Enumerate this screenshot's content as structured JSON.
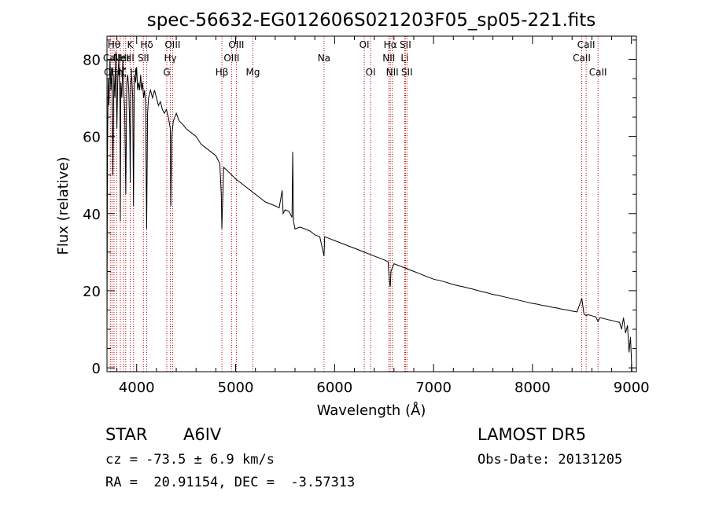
{
  "chart_data": {
    "type": "line",
    "title": "spec-56632-EG012606S021203F05_sp05-221.fits",
    "xlabel": "Wavelength (Å)",
    "ylabel": "Flux (relative)",
    "xlim": [
      3700,
      9050
    ],
    "ylim": [
      -1,
      86
    ],
    "x_ticks": [
      4000,
      5000,
      6000,
      7000,
      8000,
      9000
    ],
    "y_ticks": [
      0,
      20,
      40,
      60,
      80
    ],
    "grid": false,
    "series": [
      {
        "points": [
          [
            3700,
            8
          ],
          [
            3705,
            55
          ],
          [
            3712,
            75
          ],
          [
            3720,
            68
          ],
          [
            3730,
            80
          ],
          [
            3740,
            72
          ],
          [
            3750,
            78
          ],
          [
            3760,
            50
          ],
          [
            3770,
            76
          ],
          [
            3780,
            70
          ],
          [
            3790,
            82
          ],
          [
            3800,
            62
          ],
          [
            3810,
            76
          ],
          [
            3820,
            80
          ],
          [
            3830,
            68
          ],
          [
            3835,
            38
          ],
          [
            3840,
            74
          ],
          [
            3850,
            70
          ],
          [
            3860,
            80
          ],
          [
            3870,
            72
          ],
          [
            3880,
            66
          ],
          [
            3890,
            45
          ],
          [
            3900,
            74
          ],
          [
            3910,
            76
          ],
          [
            3920,
            72
          ],
          [
            3930,
            62
          ],
          [
            3935,
            48
          ],
          [
            3940,
            74
          ],
          [
            3950,
            76
          ],
          [
            3960,
            70
          ],
          [
            3968,
            42
          ],
          [
            3975,
            70
          ],
          [
            3980,
            76
          ],
          [
            3990,
            74
          ],
          [
            4000,
            78
          ],
          [
            4010,
            72
          ],
          [
            4020,
            74
          ],
          [
            4030,
            72
          ],
          [
            4040,
            76
          ],
          [
            4050,
            72
          ],
          [
            4060,
            74
          ],
          [
            4070,
            70
          ],
          [
            4080,
            72
          ],
          [
            4090,
            68
          ],
          [
            4101,
            36
          ],
          [
            4110,
            66
          ],
          [
            4120,
            70
          ],
          [
            4140,
            72
          ],
          [
            4160,
            70
          ],
          [
            4180,
            72
          ],
          [
            4200,
            70
          ],
          [
            4220,
            68
          ],
          [
            4240,
            69
          ],
          [
            4260,
            67
          ],
          [
            4280,
            66
          ],
          [
            4300,
            67
          ],
          [
            4320,
            65
          ],
          [
            4340,
            62
          ],
          [
            4345,
            42
          ],
          [
            4355,
            60
          ],
          [
            4370,
            64
          ],
          [
            4400,
            66
          ],
          [
            4430,
            64
          ],
          [
            4470,
            63
          ],
          [
            4500,
            62
          ],
          [
            4550,
            61
          ],
          [
            4600,
            60
          ],
          [
            4650,
            58
          ],
          [
            4700,
            57
          ],
          [
            4750,
            56
          ],
          [
            4800,
            55
          ],
          [
            4840,
            53
          ],
          [
            4855,
            45
          ],
          [
            4861,
            36
          ],
          [
            4870,
            44
          ],
          [
            4880,
            52
          ],
          [
            4920,
            51
          ],
          [
            4960,
            50
          ],
          [
            5000,
            49
          ],
          [
            5050,
            48
          ],
          [
            5100,
            47
          ],
          [
            5150,
            46
          ],
          [
            5200,
            45
          ],
          [
            5250,
            44
          ],
          [
            5300,
            43
          ],
          [
            5350,
            42.5
          ],
          [
            5400,
            42
          ],
          [
            5440,
            41.5
          ],
          [
            5470,
            46
          ],
          [
            5480,
            40
          ],
          [
            5500,
            41
          ],
          [
            5540,
            40.5
          ],
          [
            5570,
            39
          ],
          [
            5577,
            56
          ],
          [
            5585,
            38
          ],
          [
            5600,
            36
          ],
          [
            5650,
            36.5
          ],
          [
            5700,
            36
          ],
          [
            5750,
            35.5
          ],
          [
            5800,
            34.5
          ],
          [
            5850,
            34
          ],
          [
            5893,
            29
          ],
          [
            5900,
            34
          ],
          [
            5950,
            33.5
          ],
          [
            6000,
            33
          ],
          [
            6050,
            32.5
          ],
          [
            6100,
            32
          ],
          [
            6150,
            31.5
          ],
          [
            6200,
            31
          ],
          [
            6250,
            30.5
          ],
          [
            6300,
            30
          ],
          [
            6350,
            29.5
          ],
          [
            6400,
            29
          ],
          [
            6450,
            28.5
          ],
          [
            6500,
            28
          ],
          [
            6540,
            27.5
          ],
          [
            6556,
            22
          ],
          [
            6563,
            21
          ],
          [
            6570,
            25
          ],
          [
            6600,
            27
          ],
          [
            6650,
            26.5
          ],
          [
            6700,
            26
          ],
          [
            6750,
            25.5
          ],
          [
            6800,
            25
          ],
          [
            6850,
            24.5
          ],
          [
            6900,
            24
          ],
          [
            6950,
            23.5
          ],
          [
            7000,
            23
          ],
          [
            7050,
            22.7
          ],
          [
            7100,
            22.4
          ],
          [
            7150,
            22
          ],
          [
            7200,
            21.6
          ],
          [
            7250,
            21.3
          ],
          [
            7300,
            21
          ],
          [
            7350,
            20.7
          ],
          [
            7400,
            20.4
          ],
          [
            7450,
            20
          ],
          [
            7500,
            19.7
          ],
          [
            7550,
            19.4
          ],
          [
            7600,
            19
          ],
          [
            7650,
            18.8
          ],
          [
            7700,
            18.5
          ],
          [
            7750,
            18.2
          ],
          [
            7800,
            17.9
          ],
          [
            7850,
            17.6
          ],
          [
            7900,
            17.3
          ],
          [
            7950,
            17
          ],
          [
            8000,
            16.7
          ],
          [
            8050,
            16.5
          ],
          [
            8100,
            16.2
          ],
          [
            8150,
            16
          ],
          [
            8200,
            15.7
          ],
          [
            8250,
            15.5
          ],
          [
            8300,
            15.2
          ],
          [
            8350,
            15
          ],
          [
            8400,
            14.7
          ],
          [
            8450,
            14.5
          ],
          [
            8498,
            18
          ],
          [
            8520,
            14
          ],
          [
            8542,
            13.5
          ],
          [
            8560,
            13.8
          ],
          [
            8600,
            13.5
          ],
          [
            8640,
            13.2
          ],
          [
            8662,
            12
          ],
          [
            8680,
            13
          ],
          [
            8720,
            12.8
          ],
          [
            8760,
            12.5
          ],
          [
            8800,
            12.3
          ],
          [
            8840,
            12
          ],
          [
            8880,
            11.8
          ],
          [
            8900,
            10
          ],
          [
            8920,
            13
          ],
          [
            8940,
            9
          ],
          [
            8960,
            11
          ],
          [
            8975,
            4
          ],
          [
            8990,
            8
          ],
          [
            9000,
            2
          ],
          [
            9005,
            -1
          ]
        ]
      }
    ],
    "lines": [
      {
        "x": 3734,
        "label": "OII",
        "row": 3
      },
      {
        "x": 3750,
        "label": "CaII",
        "row": 2
      },
      {
        "x": 3771,
        "label": "Hθ",
        "row": 1
      },
      {
        "x": 3798,
        "label": "Hη",
        "row": 3
      },
      {
        "x": 3835,
        "label": "Hζ",
        "row": 3
      },
      {
        "x": 3869,
        "label": "NeIII",
        "row": 2
      },
      {
        "x": 3889,
        "label": "Hε",
        "row": 2
      },
      {
        "x": 3934,
        "label": "K",
        "row": 1
      },
      {
        "x": 3968,
        "label": "H",
        "row": 3
      },
      {
        "x": 4068,
        "label": "SII",
        "row": 2
      },
      {
        "x": 4102,
        "label": "Hδ",
        "row": 1
      },
      {
        "x": 4304,
        "label": "G",
        "row": 3
      },
      {
        "x": 4340,
        "label": "Hγ",
        "row": 2
      },
      {
        "x": 4363,
        "label": "OIII",
        "row": 1
      },
      {
        "x": 4861,
        "label": "Hβ",
        "row": 3
      },
      {
        "x": 4959,
        "label": "OIII",
        "row": 2
      },
      {
        "x": 5007,
        "label": "OIII",
        "row": 1
      },
      {
        "x": 5175,
        "label": "Mg",
        "row": 3
      },
      {
        "x": 5893,
        "label": "Na",
        "row": 2
      },
      {
        "x": 6300,
        "label": "OI",
        "row": 1
      },
      {
        "x": 6364,
        "label": "OI",
        "row": 3
      },
      {
        "x": 6548,
        "label": "NII",
        "row": 2
      },
      {
        "x": 6563,
        "label": "Hα",
        "row": 1
      },
      {
        "x": 6583,
        "label": "NII",
        "row": 3
      },
      {
        "x": 6708,
        "label": "Li",
        "row": 2
      },
      {
        "x": 6716,
        "label": "SII",
        "row": 1
      },
      {
        "x": 6731,
        "label": "SII",
        "row": 3
      },
      {
        "x": 8498,
        "label": "CaII",
        "row": 2
      },
      {
        "x": 8542,
        "label": "CaII",
        "row": 1
      },
      {
        "x": 8662,
        "label": "CaII",
        "row": 3
      }
    ]
  },
  "info": {
    "class": "STAR",
    "subclass": "A6IV",
    "survey": "LAMOST DR5",
    "cz": "cz = -73.5 ± 6.9 km/s",
    "obs_date": "Obs-Date: 20131205",
    "coords": "RA =  20.91154, DEC =  -3.57313"
  }
}
